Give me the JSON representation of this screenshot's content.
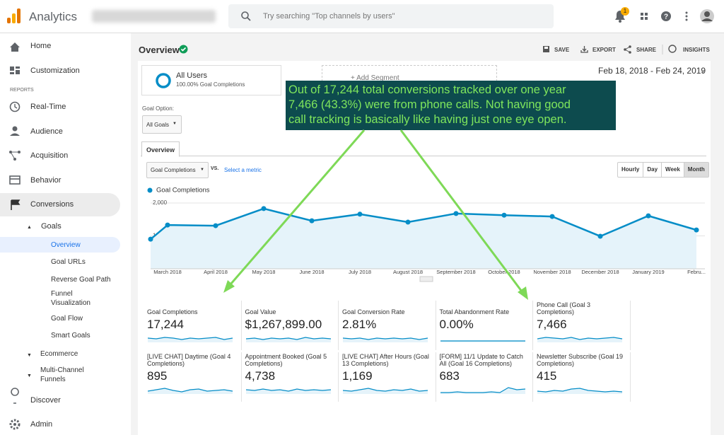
{
  "topbar": {
    "product": "Analytics",
    "search_placeholder": "Try searching \"Top channels by users\"",
    "notification_count": "1"
  },
  "sidebar": {
    "home": "Home",
    "customization": "Customization",
    "section": "REPORTS",
    "realtime": "Real-Time",
    "audience": "Audience",
    "acquisition": "Acquisition",
    "behavior": "Behavior",
    "conversions": "Conversions",
    "goals": "Goals",
    "goal_items": [
      "Overview",
      "Goal URLs",
      "Reverse Goal Path",
      "Funnel Visualization",
      "Goal Flow",
      "Smart Goals"
    ],
    "ecommerce": "Ecommerce",
    "multichannel": "Multi-Channel Funnels",
    "discover": "Discover",
    "admin": "Admin"
  },
  "header": {
    "title": "Overview",
    "actions": [
      "SAVE",
      "EXPORT",
      "SHARE",
      "INSIGHTS"
    ]
  },
  "segment": {
    "name": "All Users",
    "detail": "100.00% Goal Completions",
    "add": "+ Add Segment"
  },
  "date_range": "Feb 18, 2018 - Feb 24, 2019",
  "goal_option": {
    "label": "Goal Option:",
    "value": "All Goals"
  },
  "tab": "Overview",
  "metric_selector": {
    "value": "Goal Completions",
    "vs": "VS.",
    "link": "Select a metric"
  },
  "granularity": [
    "Hourly",
    "Day",
    "Week",
    "Month"
  ],
  "chart_data": {
    "type": "line",
    "categories": [
      null,
      "March 2018",
      "April 2018",
      "May 2018",
      "June 2018",
      "July 2018",
      "August 2018",
      "September 2018",
      "October 2018",
      "November 2018",
      "December 2018",
      "January 2019",
      "Febru..."
    ],
    "series": [
      {
        "name": "Goal Completions",
        "color": "#058dc7",
        "values": [
          900,
          1330,
          1310,
          1830,
          1460,
          1660,
          1420,
          1680,
          1630,
          1590,
          990,
          1610,
          1180
        ]
      }
    ],
    "ylim": [
      0,
      2000
    ],
    "yticks": [
      {
        "value": 1000,
        "label": "1,000"
      },
      {
        "value": 2000,
        "label": "2,000"
      }
    ]
  },
  "annotation": {
    "lines": [
      "Out of 17,244 total conversions tracked over one year",
      "7,466 (43.3%) were from phone calls. Not having good",
      "call tracking is basically like having just one eye open."
    ]
  },
  "metrics": [
    {
      "label": "Goal Completions",
      "value": "17,244"
    },
    {
      "label": "Goal Value",
      "value": "$1,267,899.00"
    },
    {
      "label": "Goal Conversion Rate",
      "value": "2.81%"
    },
    {
      "label": "Total Abandonment Rate",
      "value": "0.00%"
    },
    {
      "label": "Phone Call (Goal 3 Completions)",
      "value": "7,466"
    },
    {
      "label": "[LIVE CHAT] Daytime (Goal 4 Completions)",
      "value": "895"
    },
    {
      "label": "Appointment Booked (Goal 5 Completions)",
      "value": "4,738"
    },
    {
      "label": "[LIVE CHAT] After Hours (Goal 13 Completions)",
      "value": "1,169"
    },
    {
      "label": "[FORM] 11/1 Update to Catch All (Goal 16 Completions)",
      "value": "683"
    },
    {
      "label": "Newsletter Subscribe (Goal 19 Completions)",
      "value": "415"
    }
  ]
}
